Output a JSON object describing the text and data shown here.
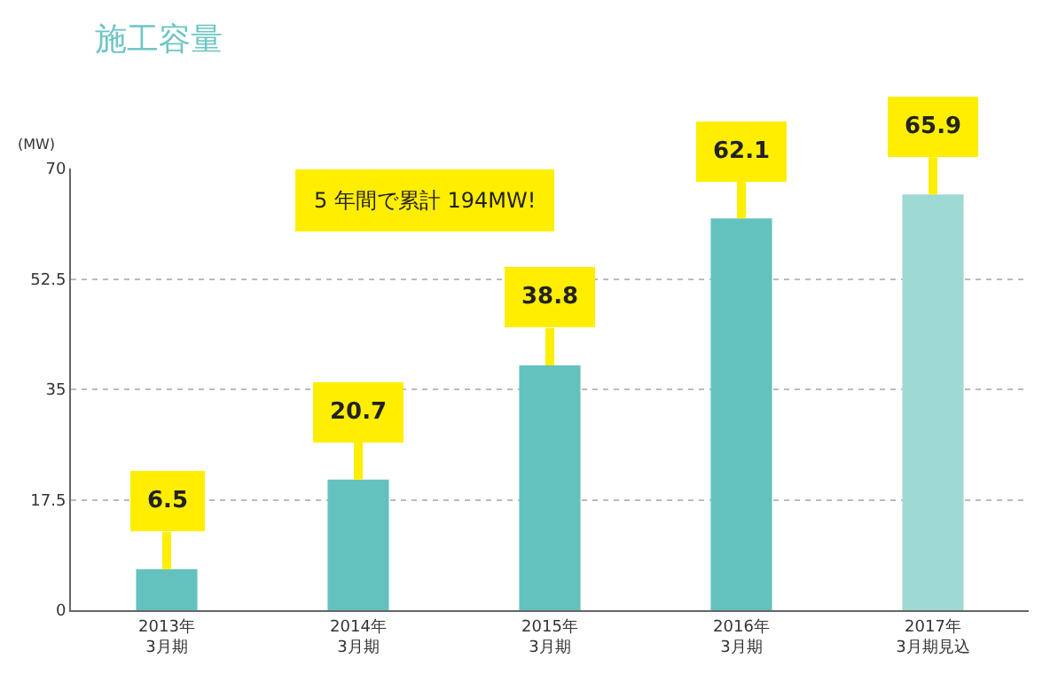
{
  "chart_data": {
    "type": "bar",
    "title": "施工容量",
    "ylabel": "(MW)",
    "categories": [
      "2013年\n3月期",
      "2014年\n3月期",
      "2015年\n3月期",
      "2016年\n3月期",
      "2017年\n3月期見込"
    ],
    "values": [
      6.5,
      20.7,
      38.8,
      62.1,
      65.9
    ],
    "colors": [
      "#63c2bd",
      "#63c2bd",
      "#63c2bd",
      "#63c2bd",
      "#9fd9d3"
    ],
    "ylim": [
      0,
      70
    ],
    "yticks": [
      0,
      17.5,
      35,
      52.5,
      70
    ],
    "grid": "y",
    "data_labels": true,
    "annotations": [
      "5 年間で累計 194MW!"
    ]
  }
}
